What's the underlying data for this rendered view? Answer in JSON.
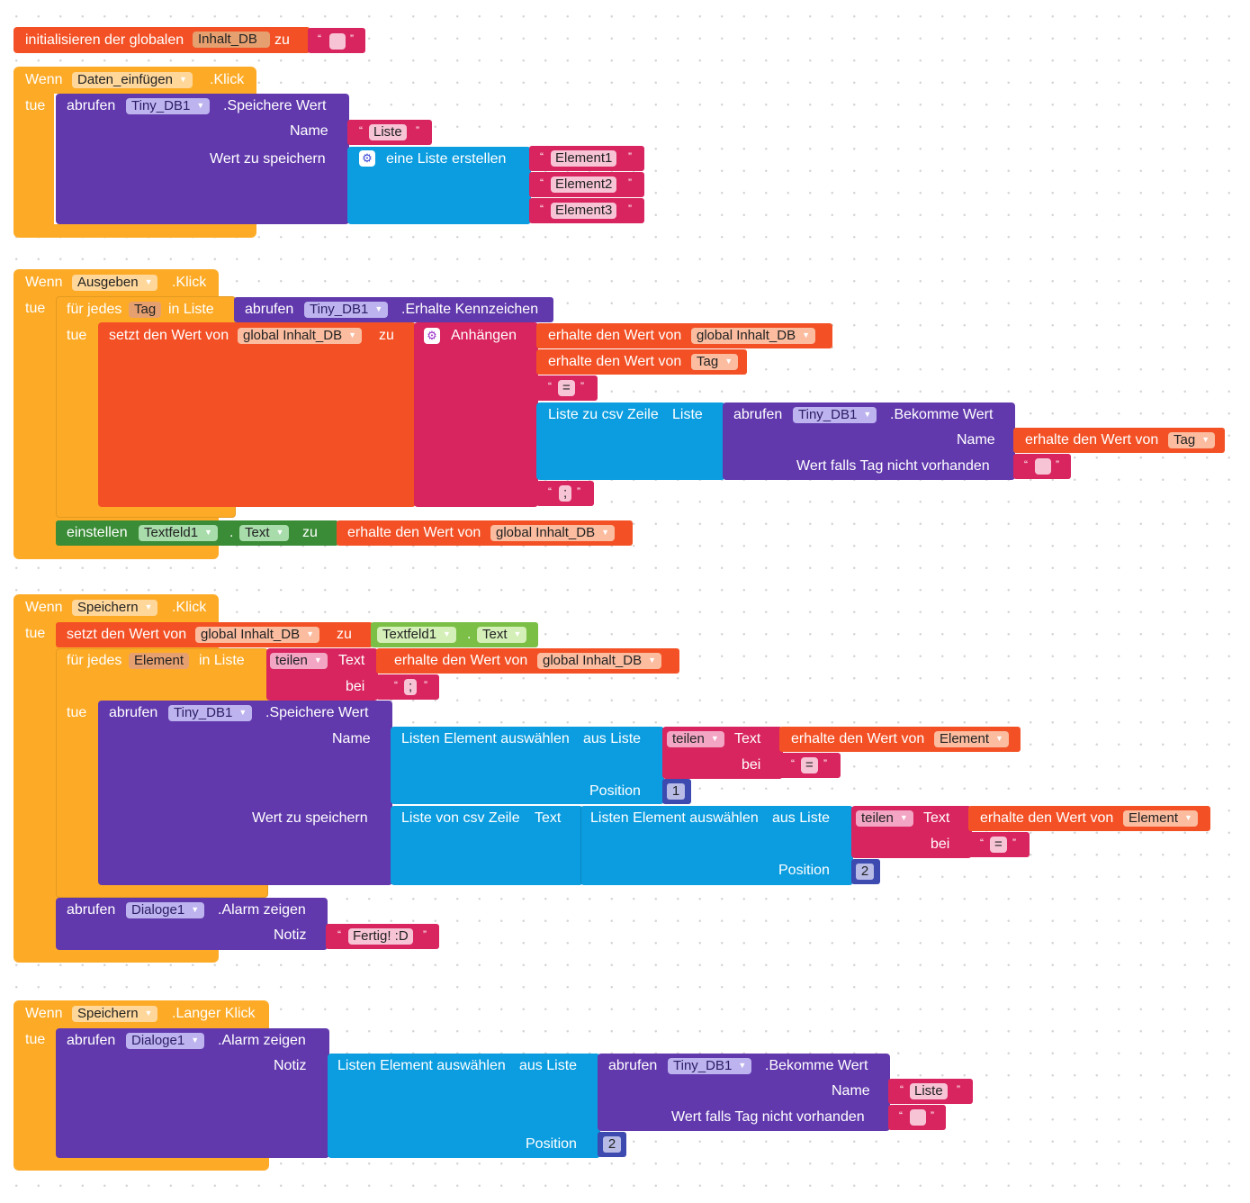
{
  "colors": {
    "event": "#fdab27",
    "tinydb_purple": "#6139ad",
    "text_red": "#d8245f",
    "variable_orange": "#f35125",
    "list_cyan": "#0b9de0",
    "number_blue": "#3d4ab0",
    "component_green": "#3a8c36",
    "textbox_lime": "#7bbf47",
    "control_orange": "#fdab27"
  },
  "icons": {
    "gear": "gear-icon",
    "dropdown": "dropdown-arrow-icon",
    "quote": "quote-icon"
  },
  "global_init": {
    "prefix": "initialisieren der globalen",
    "name": "Inhalt_DB",
    "mid": "zu"
  },
  "common": {
    "wenn": "Wenn",
    "tue": "tue",
    "klick": ".Klick",
    "langer_klick": ".Langer Klick",
    "abrufen": "abrufen",
    "speichere_wert": ".Speichere Wert",
    "bekomme_wert": ".Bekomme Wert",
    "erhalte_kennzeichen": ".Erhalte Kennzeichen",
    "alarm_zeigen": ".Alarm zeigen",
    "name": "Name",
    "wert_zu_speichern": "Wert zu speichern",
    "wert_falls_tag": "Wert falls Tag nicht vorhanden",
    "notiz": "Notiz",
    "eine_liste_erstellen": "eine Liste erstellen",
    "fuer_jedes": "für jedes",
    "in_liste": "in Liste",
    "setzt_den_wert_von": "setzt den Wert von",
    "zu": "zu",
    "anhaengen": "Anhängen",
    "erhalte_den_wert_von": "erhalte den Wert von",
    "liste_zu_csv_zeile": "Liste zu csv Zeile",
    "liste": "Liste",
    "einstellen": "einstellen",
    "dot": ".",
    "teilen": "teilen",
    "text": "Text",
    "bei": "bei",
    "listen_element_auswaehlen": "Listen Element auswählen",
    "aus_liste": "aus Liste",
    "position": "Position",
    "liste_von_csv_zeile": "Liste von csv Zeile",
    "open_quote": "“",
    "close_quote": "”"
  },
  "components": {
    "daten_einfuegen": "Daten_einfügen",
    "ausgeben": "Ausgeben",
    "speichern": "Speichern",
    "tiny_db": "Tiny_DB1",
    "textfeld": "Textfeld1",
    "dialoge": "Dialoge1",
    "text_prop": "Text"
  },
  "vars": {
    "global_inhalt_db": "global Inhalt_DB",
    "tag": "Tag",
    "element": "Element"
  },
  "strings": {
    "empty": "",
    "liste": "Liste",
    "element1": "Element1",
    "element2": "Element2",
    "element3": "Element3",
    "equals": "=",
    "semicolon": ";",
    "fertig": "Fertig! :D"
  },
  "numbers": {
    "one": "1",
    "two": "2"
  }
}
